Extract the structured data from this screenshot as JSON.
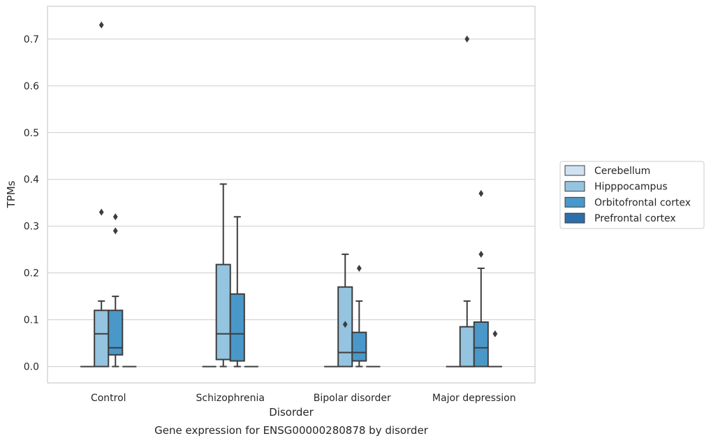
{
  "chart_data": {
    "type": "box",
    "title": "",
    "caption": "Gene expression for ENSG00000280878 by disorder",
    "xlabel": "Disorder",
    "ylabel": "TPMs",
    "ylim": [
      -0.035,
      0.77
    ],
    "yticks": [
      0.0,
      0.1,
      0.2,
      0.3,
      0.4,
      0.5,
      0.6,
      0.7
    ],
    "ytick_labels": [
      "0.0",
      "0.1",
      "0.2",
      "0.3",
      "0.4",
      "0.5",
      "0.6",
      "0.7"
    ],
    "grid": "horizontal",
    "legend_position": "right",
    "categories": [
      "Control",
      "Schizophrenia",
      "Bipolar disorder",
      "Major depression"
    ],
    "series": [
      {
        "name": "Cerebellum",
        "color": "#d0e1f2",
        "boxes": [
          {
            "q1": 0,
            "median": 0,
            "q3": 0,
            "whisker_low": 0,
            "whisker_high": 0,
            "outliers": []
          },
          {
            "q1": 0,
            "median": 0,
            "q3": 0,
            "whisker_low": 0,
            "whisker_high": 0,
            "outliers": []
          },
          {
            "q1": 0,
            "median": 0,
            "q3": 0,
            "whisker_low": 0,
            "whisker_high": 0,
            "outliers": []
          },
          {
            "q1": 0,
            "median": 0,
            "q3": 0,
            "whisker_low": 0,
            "whisker_high": 0,
            "outliers": []
          }
        ]
      },
      {
        "name": "Hipppocampus",
        "color": "#94c4df",
        "boxes": [
          {
            "q1": 0,
            "median": 0.07,
            "q3": 0.12,
            "whisker_low": 0,
            "whisker_high": 0.14,
            "outliers": [
              0.73,
              0.33
            ]
          },
          {
            "q1": 0.015,
            "median": 0.07,
            "q3": 0.218,
            "whisker_low": 0,
            "whisker_high": 0.39,
            "outliers": []
          },
          {
            "q1": 0,
            "median": 0.03,
            "q3": 0.17,
            "whisker_low": 0,
            "whisker_high": 0.24,
            "outliers": [
              0.09
            ]
          },
          {
            "q1": 0,
            "median": 0,
            "q3": 0.085,
            "whisker_low": 0,
            "whisker_high": 0.14,
            "outliers": [
              0.7
            ]
          }
        ]
      },
      {
        "name": "Orbitofrontal cortex",
        "color": "#4a98c9",
        "boxes": [
          {
            "q1": 0.025,
            "median": 0.04,
            "q3": 0.12,
            "whisker_low": 0,
            "whisker_high": 0.15,
            "outliers": [
              0.32,
              0.29
            ]
          },
          {
            "q1": 0.012,
            "median": 0.07,
            "q3": 0.155,
            "whisker_low": 0,
            "whisker_high": 0.32,
            "outliers": []
          },
          {
            "q1": 0.012,
            "median": 0.03,
            "q3": 0.073,
            "whisker_low": 0,
            "whisker_high": 0.14,
            "outliers": [
              0.21
            ]
          },
          {
            "q1": 0,
            "median": 0.04,
            "q3": 0.095,
            "whisker_low": 0,
            "whisker_high": 0.21,
            "outliers": [
              0.37,
              0.24
            ]
          }
        ]
      },
      {
        "name": "Prefrontal cortex",
        "color": "#2e6ea9",
        "boxes": [
          {
            "q1": 0,
            "median": 0,
            "q3": 0,
            "whisker_low": 0,
            "whisker_high": 0,
            "outliers": []
          },
          {
            "q1": 0,
            "median": 0,
            "q3": 0,
            "whisker_low": 0,
            "whisker_high": 0,
            "outliers": []
          },
          {
            "q1": 0,
            "median": 0,
            "q3": 0,
            "whisker_low": 0,
            "whisker_high": 0,
            "outliers": []
          },
          {
            "q1": 0,
            "median": 0,
            "q3": 0,
            "whisker_low": 0,
            "whisker_high": 0,
            "outliers": [
              0.07
            ]
          }
        ]
      }
    ]
  }
}
